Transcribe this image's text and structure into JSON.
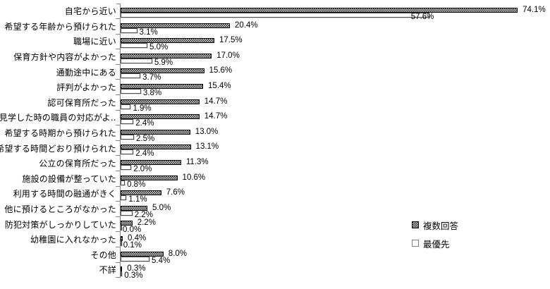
{
  "chart_data": {
    "type": "bar",
    "orientation": "horizontal",
    "title": "",
    "xlabel": "",
    "ylabel": "",
    "xlim": [
      0,
      76
    ],
    "grid": false,
    "legend_position": "right-middle-low",
    "value_suffix": "%",
    "categories": [
      "自宅から近い",
      "希望する年齢から預けられた",
      "職場に近い",
      "保育方針や内容がよかった",
      "通勤途中にある",
      "評判がよかった",
      "認可保育所だった",
      "見学した時の職員の対応がよ‥",
      "希望する時期から預けられた",
      "希望する時間どおり預けられた",
      "公立の保育所だった",
      "施設の設備が整っていた",
      "利用する時間の融通がきく",
      "他に預けるところがなかった",
      "防犯対策がしっかりしていた",
      "幼稚園に入れなかった",
      "その他",
      "不詳"
    ],
    "series": [
      {
        "name": "複数回答",
        "swatch": "checker-pattern",
        "values": [
          74.1,
          20.4,
          17.5,
          17.0,
          15.6,
          15.4,
          14.7,
          14.7,
          13.0,
          13.1,
          11.3,
          10.6,
          7.6,
          5.0,
          2.2,
          0.4,
          8.0,
          0.3
        ]
      },
      {
        "name": "最優先",
        "swatch": "white-outline",
        "values": [
          57.6,
          3.1,
          5.0,
          5.9,
          3.7,
          3.8,
          1.9,
          2.4,
          2.5,
          2.4,
          2.0,
          0.8,
          1.1,
          2.2,
          0.0,
          0.1,
          5.4,
          0.3
        ]
      }
    ]
  },
  "legend": {
    "items": [
      {
        "label": "複数回答",
        "swatch": "checker-pattern"
      },
      {
        "label": "最優先",
        "swatch": "white-outline"
      }
    ]
  },
  "colors": {
    "background": "#ffffff",
    "bar_pattern_fg": "#000000",
    "bar_pattern_bg": "#ffffff",
    "bar_outline": "#000000",
    "priority_bar_fill": "#ffffff",
    "priority_bar_border": "#4d4d4d",
    "axis": "#868686",
    "text": "#000000"
  }
}
